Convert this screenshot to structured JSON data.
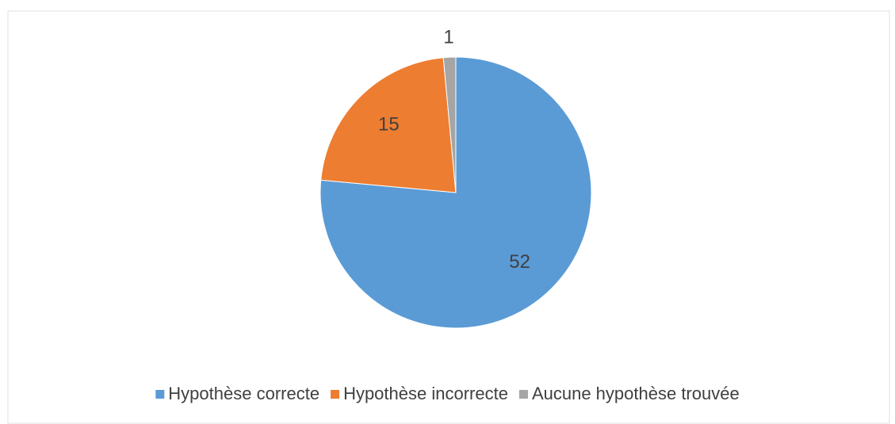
{
  "chart_data": {
    "type": "pie",
    "categories": [
      "Hypothèse correcte",
      "Hypothèse incorrecte",
      "Aucune hypothèse trouvée"
    ],
    "values": [
      52,
      15,
      1
    ],
    "colors": [
      "#5b9bd5",
      "#ed7d31",
      "#a5a5a5"
    ],
    "legend": "bottom"
  }
}
